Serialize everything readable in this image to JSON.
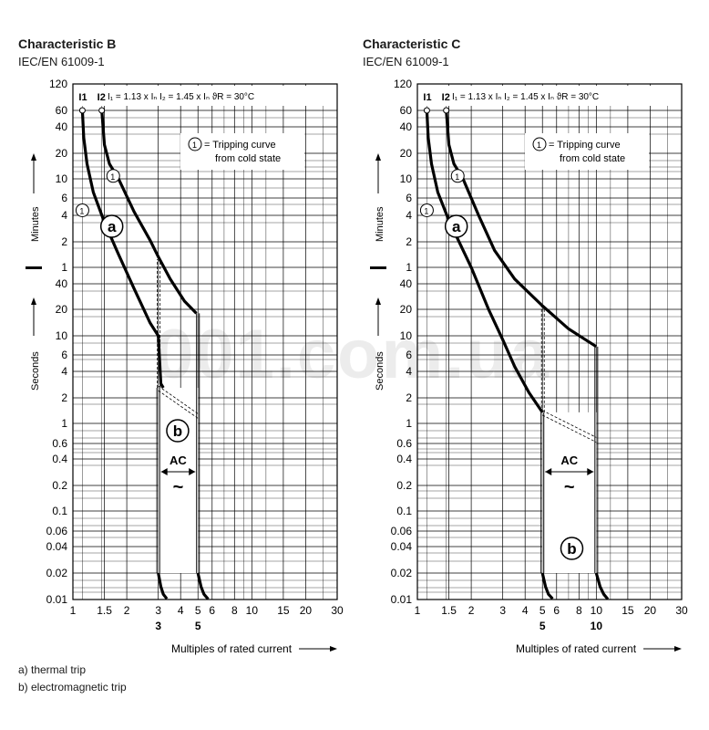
{
  "footnotes": {
    "a": "a)  thermal trip",
    "b": "b)  electromagnetic trip"
  },
  "colors": {
    "curve": "#000000",
    "grid": "#000000",
    "watermark": "#e9e9e9"
  },
  "watermark": "001.com.ua",
  "chart_data": [
    {
      "type": "line",
      "title": "Characteristic B",
      "subtitle": "IEC/EN 61009-1",
      "xlabel": "Multiples of rated current",
      "x_scale": "log",
      "y_scale": "log",
      "xlim": [
        1,
        30
      ],
      "x_ticks": [
        1,
        1.5,
        2,
        3,
        4,
        5,
        6,
        8,
        10,
        15,
        20,
        30
      ],
      "x_tick_labels": [
        "1",
        "1.5",
        "2",
        "3",
        "4",
        "5",
        "6",
        "8",
        "10",
        "15",
        "20",
        "30"
      ],
      "x_marks": [
        "3",
        "5"
      ],
      "y_label_minutes": "Minutes",
      "y_label_seconds": "Seconds",
      "y_ticks_minutes": [
        "120",
        "60",
        "40",
        "20",
        "10",
        "6",
        "4",
        "2",
        "1"
      ],
      "y_ticks_seconds": [
        "40",
        "20",
        "10",
        "6",
        "4",
        "2",
        "1",
        "0.6",
        "0.4",
        "0.2",
        "0.1",
        "0.06",
        "0.04",
        "0.02",
        "0.01"
      ],
      "header_label": "I₁ = 1.13 x Iₙ    I₂ = 1.45 x Iₙ    ϑR = 30°C",
      "i1_label": "I1",
      "i2_label": "I2",
      "i1": 1.13,
      "i2": 1.45,
      "legend_note_marker": "1",
      "legend_note": [
        "=  Tripping curve",
        "from cold state"
      ],
      "region_a_label": "a",
      "region_b_label": "b",
      "ac_label": "AC",
      "ac_symbol": "~",
      "ac_range": [
        3,
        5
      ],
      "curve_units": "seconds",
      "series": [
        {
          "name": "lower thermal",
          "points": [
            [
              1.13,
              3600
            ],
            [
              1.15,
              1800
            ],
            [
              1.2,
              900
            ],
            [
              1.3,
              420
            ],
            [
              1.5,
              200
            ],
            [
              1.8,
              85
            ],
            [
              2.2,
              35
            ],
            [
              2.7,
              14
            ],
            [
              3.0,
              10
            ],
            [
              3.1,
              2.9
            ],
            [
              3.2,
              2.6
            ]
          ]
        },
        {
          "name": "upper thermal",
          "points": [
            [
              1.45,
              3600
            ],
            [
              1.5,
              1500
            ],
            [
              1.6,
              900
            ],
            [
              1.8,
              600
            ],
            [
              2.2,
              260
            ],
            [
              2.7,
              125
            ],
            [
              3.0,
              80
            ],
            [
              3.5,
              45
            ],
            [
              4.2,
              25
            ],
            [
              4.9,
              18
            ]
          ]
        },
        {
          "name": "lower instantaneous",
          "points": [
            [
              3.0,
              0.02
            ],
            [
              3.1,
              0.014
            ],
            [
              3.2,
              0.0115
            ],
            [
              3.35,
              0.0102
            ]
          ]
        },
        {
          "name": "upper instantaneous",
          "points": [
            [
              5.0,
              0.02
            ],
            [
              5.2,
              0.014
            ],
            [
              5.4,
              0.0115
            ],
            [
              5.7,
              0.0101
            ]
          ]
        }
      ]
    },
    {
      "type": "line",
      "title": "Characteristic C",
      "subtitle": "IEC/EN 61009-1",
      "xlabel": "Multiples of rated current",
      "x_scale": "log",
      "y_scale": "log",
      "xlim": [
        1,
        30
      ],
      "x_ticks": [
        1,
        1.5,
        2,
        3,
        4,
        5,
        6,
        8,
        10,
        15,
        20,
        30
      ],
      "x_tick_labels": [
        "1",
        "1.5",
        "2",
        "3",
        "4",
        "5",
        "6",
        "8",
        "10",
        "15",
        "20",
        "30"
      ],
      "x_marks": [
        "5",
        "10"
      ],
      "y_label_minutes": "Minutes",
      "y_label_seconds": "Seconds",
      "y_ticks_minutes": [
        "120",
        "60",
        "40",
        "20",
        "10",
        "6",
        "4",
        "2",
        "1"
      ],
      "y_ticks_seconds": [
        "40",
        "20",
        "10",
        "6",
        "4",
        "2",
        "1",
        "0.6",
        "0.4",
        "0.2",
        "0.1",
        "0.06",
        "0.04",
        "0.02",
        "0.01"
      ],
      "header_label": "I₁ = 1.13 x Iₙ    I₂ = 1.45 x Iₙ    ϑR = 30°C",
      "i1_label": "I1",
      "i2_label": "I2",
      "i1": 1.13,
      "i2": 1.45,
      "legend_note_marker": "1",
      "legend_note": [
        "=  Tripping curve",
        "from cold state"
      ],
      "region_a_label": "a",
      "region_b_label": "b",
      "ac_label": "AC",
      "ac_symbol": "~",
      "ac_range": [
        5,
        10
      ],
      "curve_units": "seconds",
      "series": [
        {
          "name": "lower thermal",
          "points": [
            [
              1.13,
              3600
            ],
            [
              1.15,
              1800
            ],
            [
              1.2,
              900
            ],
            [
              1.3,
              420
            ],
            [
              1.5,
              210
            ],
            [
              2.0,
              60
            ],
            [
              2.5,
              20
            ],
            [
              3.0,
              9
            ],
            [
              3.5,
              4.5
            ],
            [
              4.2,
              2.3
            ],
            [
              5.0,
              1.35
            ]
          ]
        },
        {
          "name": "upper thermal",
          "points": [
            [
              1.45,
              3600
            ],
            [
              1.5,
              1500
            ],
            [
              1.6,
              900
            ],
            [
              1.8,
              600
            ],
            [
              2.2,
              240
            ],
            [
              2.7,
              95
            ],
            [
              3.5,
              45
            ],
            [
              5.0,
              22
            ],
            [
              7.0,
              12
            ],
            [
              10.0,
              7.5
            ]
          ]
        },
        {
          "name": "lower instantaneous",
          "points": [
            [
              5.0,
              0.02
            ],
            [
              5.2,
              0.014
            ],
            [
              5.4,
              0.0115
            ],
            [
              5.7,
              0.0102
            ]
          ]
        },
        {
          "name": "upper instantaneous",
          "points": [
            [
              10.0,
              0.02
            ],
            [
              10.5,
              0.014
            ],
            [
              11.0,
              0.0115
            ],
            [
              11.6,
              0.0101
            ]
          ]
        }
      ]
    }
  ]
}
